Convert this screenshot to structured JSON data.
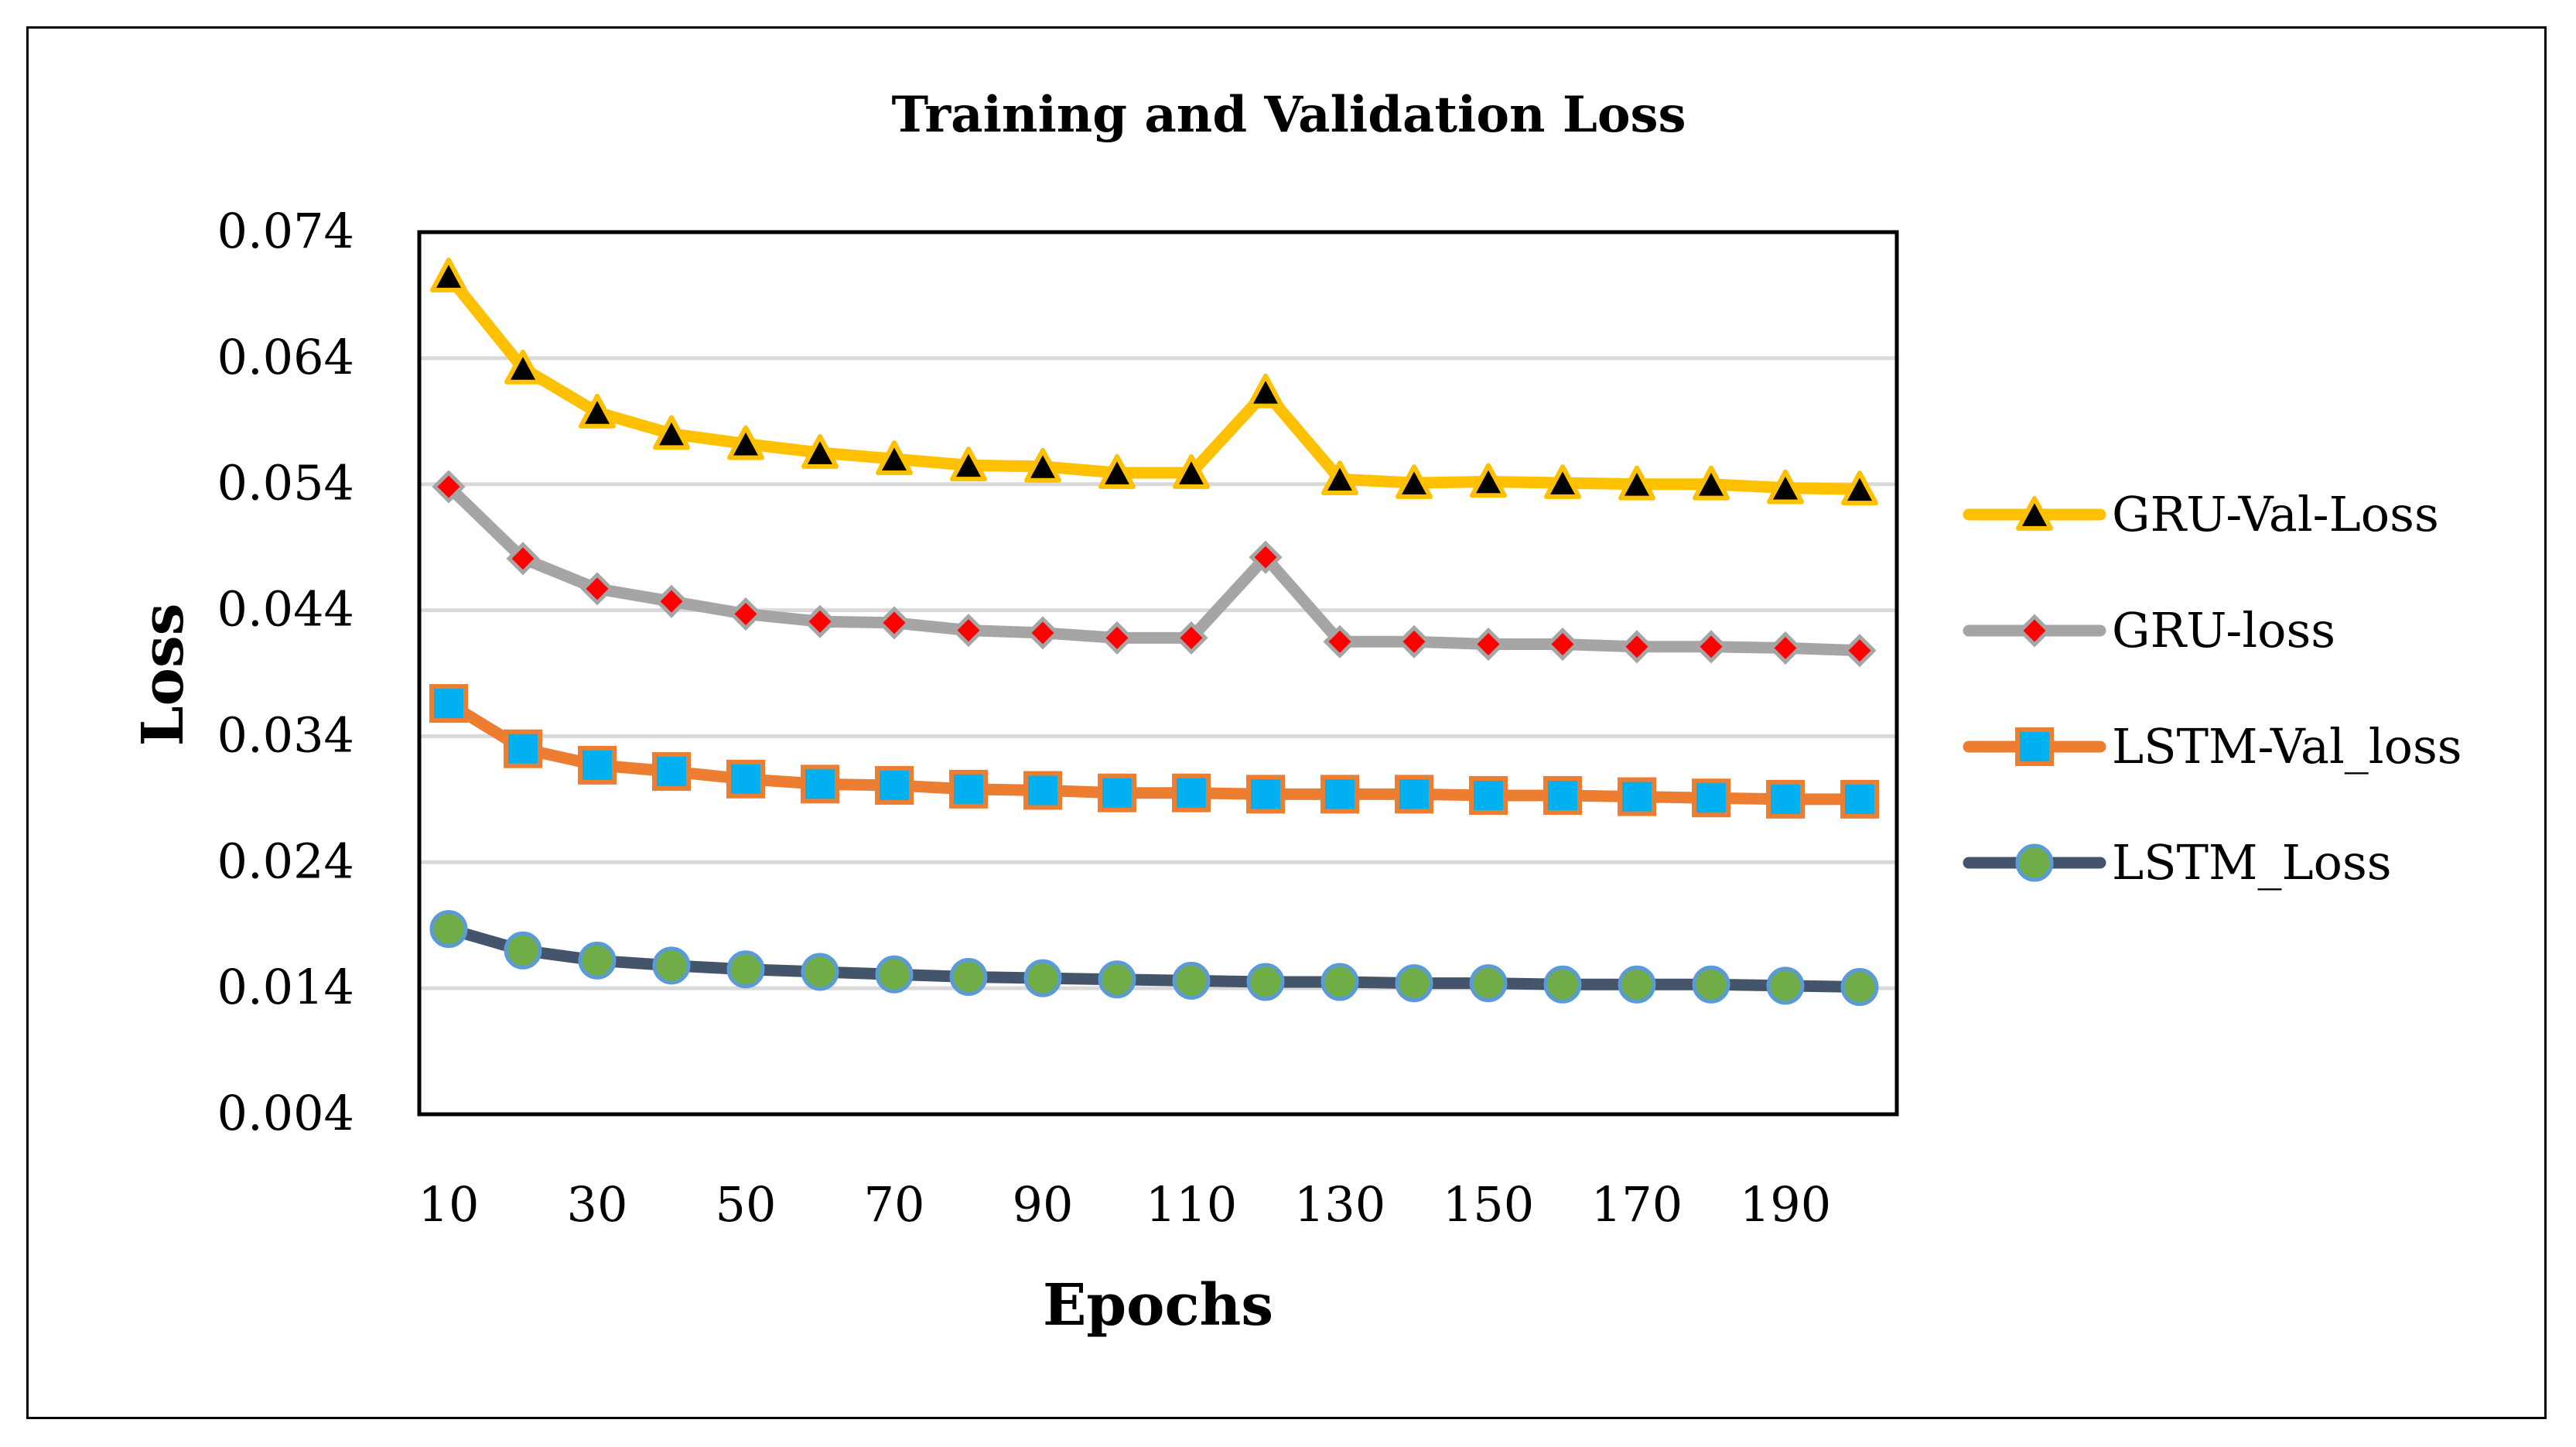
{
  "chart_data": {
    "type": "line",
    "title": "Training and Validation Loss",
    "xlabel": "Epochs",
    "ylabel": "Loss",
    "ylim": [
      0.004,
      0.074
    ],
    "yticks": [
      "0.074",
      "0.064",
      "0.054",
      "0.044",
      "0.034",
      "0.024",
      "0.014",
      "0.004"
    ],
    "xtick_labels": [
      "10",
      "30",
      "50",
      "70",
      "90",
      "110",
      "130",
      "150",
      "170",
      "190"
    ],
    "x": [
      10,
      20,
      30,
      40,
      50,
      60,
      70,
      80,
      90,
      100,
      110,
      120,
      130,
      140,
      150,
      160,
      170,
      180,
      190,
      200
    ],
    "grid": true,
    "legend_position": "right",
    "series": [
      {
        "name": "GRU-Val-Loss",
        "color": "#FFC000",
        "marker": "triangle",
        "marker_color": "#000000",
        "values": [
          0.0705,
          0.0632,
          0.0597,
          0.058,
          0.0572,
          0.0565,
          0.056,
          0.0555,
          0.0554,
          0.0549,
          0.0549,
          0.0613,
          0.0544,
          0.0541,
          0.0542,
          0.0541,
          0.054,
          0.054,
          0.0537,
          0.0536
        ]
      },
      {
        "name": "GRU-loss",
        "color": "#A5A5A5",
        "marker": "diamond",
        "marker_color": "#FF0000",
        "values": [
          0.0538,
          0.0481,
          0.0457,
          0.0447,
          0.0437,
          0.0431,
          0.043,
          0.0424,
          0.0422,
          0.0418,
          0.0418,
          0.0482,
          0.0415,
          0.0415,
          0.0413,
          0.0413,
          0.0411,
          0.0411,
          0.041,
          0.0408
        ]
      },
      {
        "name": "LSTM-Val_loss",
        "color": "#ED7D31",
        "marker": "square",
        "marker_color": "#00B0F0",
        "values": [
          0.0366,
          0.033,
          0.0317,
          0.0312,
          0.0306,
          0.0302,
          0.0301,
          0.0298,
          0.0297,
          0.0295,
          0.0295,
          0.0294,
          0.0294,
          0.0294,
          0.0293,
          0.0293,
          0.0292,
          0.0291,
          0.029,
          0.029
        ]
      },
      {
        "name": "LSTM_Loss",
        "color": "#44546A",
        "marker": "circle",
        "marker_color": "#70AD47",
        "values": [
          0.0187,
          0.017,
          0.0162,
          0.0158,
          0.0155,
          0.0153,
          0.0151,
          0.0149,
          0.0148,
          0.0147,
          0.0146,
          0.0145,
          0.0145,
          0.0144,
          0.0144,
          0.0143,
          0.0143,
          0.0143,
          0.0142,
          0.0141
        ]
      }
    ]
  }
}
